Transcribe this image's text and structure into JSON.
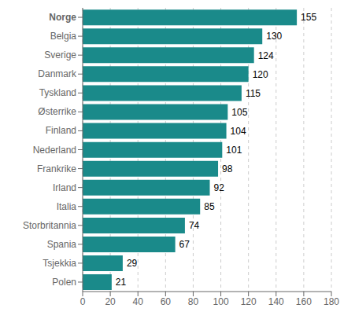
{
  "chart_data": {
    "type": "bar",
    "orientation": "horizontal",
    "categories": [
      "Polen",
      "Tsjekkia",
      "Spania",
      "Storbritannia",
      "Italia",
      "Irland",
      "Frankrike",
      "Nederland",
      "Finland",
      "Østerrike",
      "Tyskland",
      "Danmark",
      "Sverige",
      "Belgia",
      "Norge"
    ],
    "values": [
      21,
      29,
      67,
      74,
      85,
      92,
      98,
      101,
      104,
      105,
      115,
      120,
      124,
      130,
      155
    ],
    "color": "#1a8a8a",
    "xlim": [
      0,
      180
    ],
    "xticks": [
      0,
      20,
      40,
      60,
      80,
      100,
      120,
      140,
      160,
      180
    ],
    "grid": true,
    "data_labels": true
  }
}
